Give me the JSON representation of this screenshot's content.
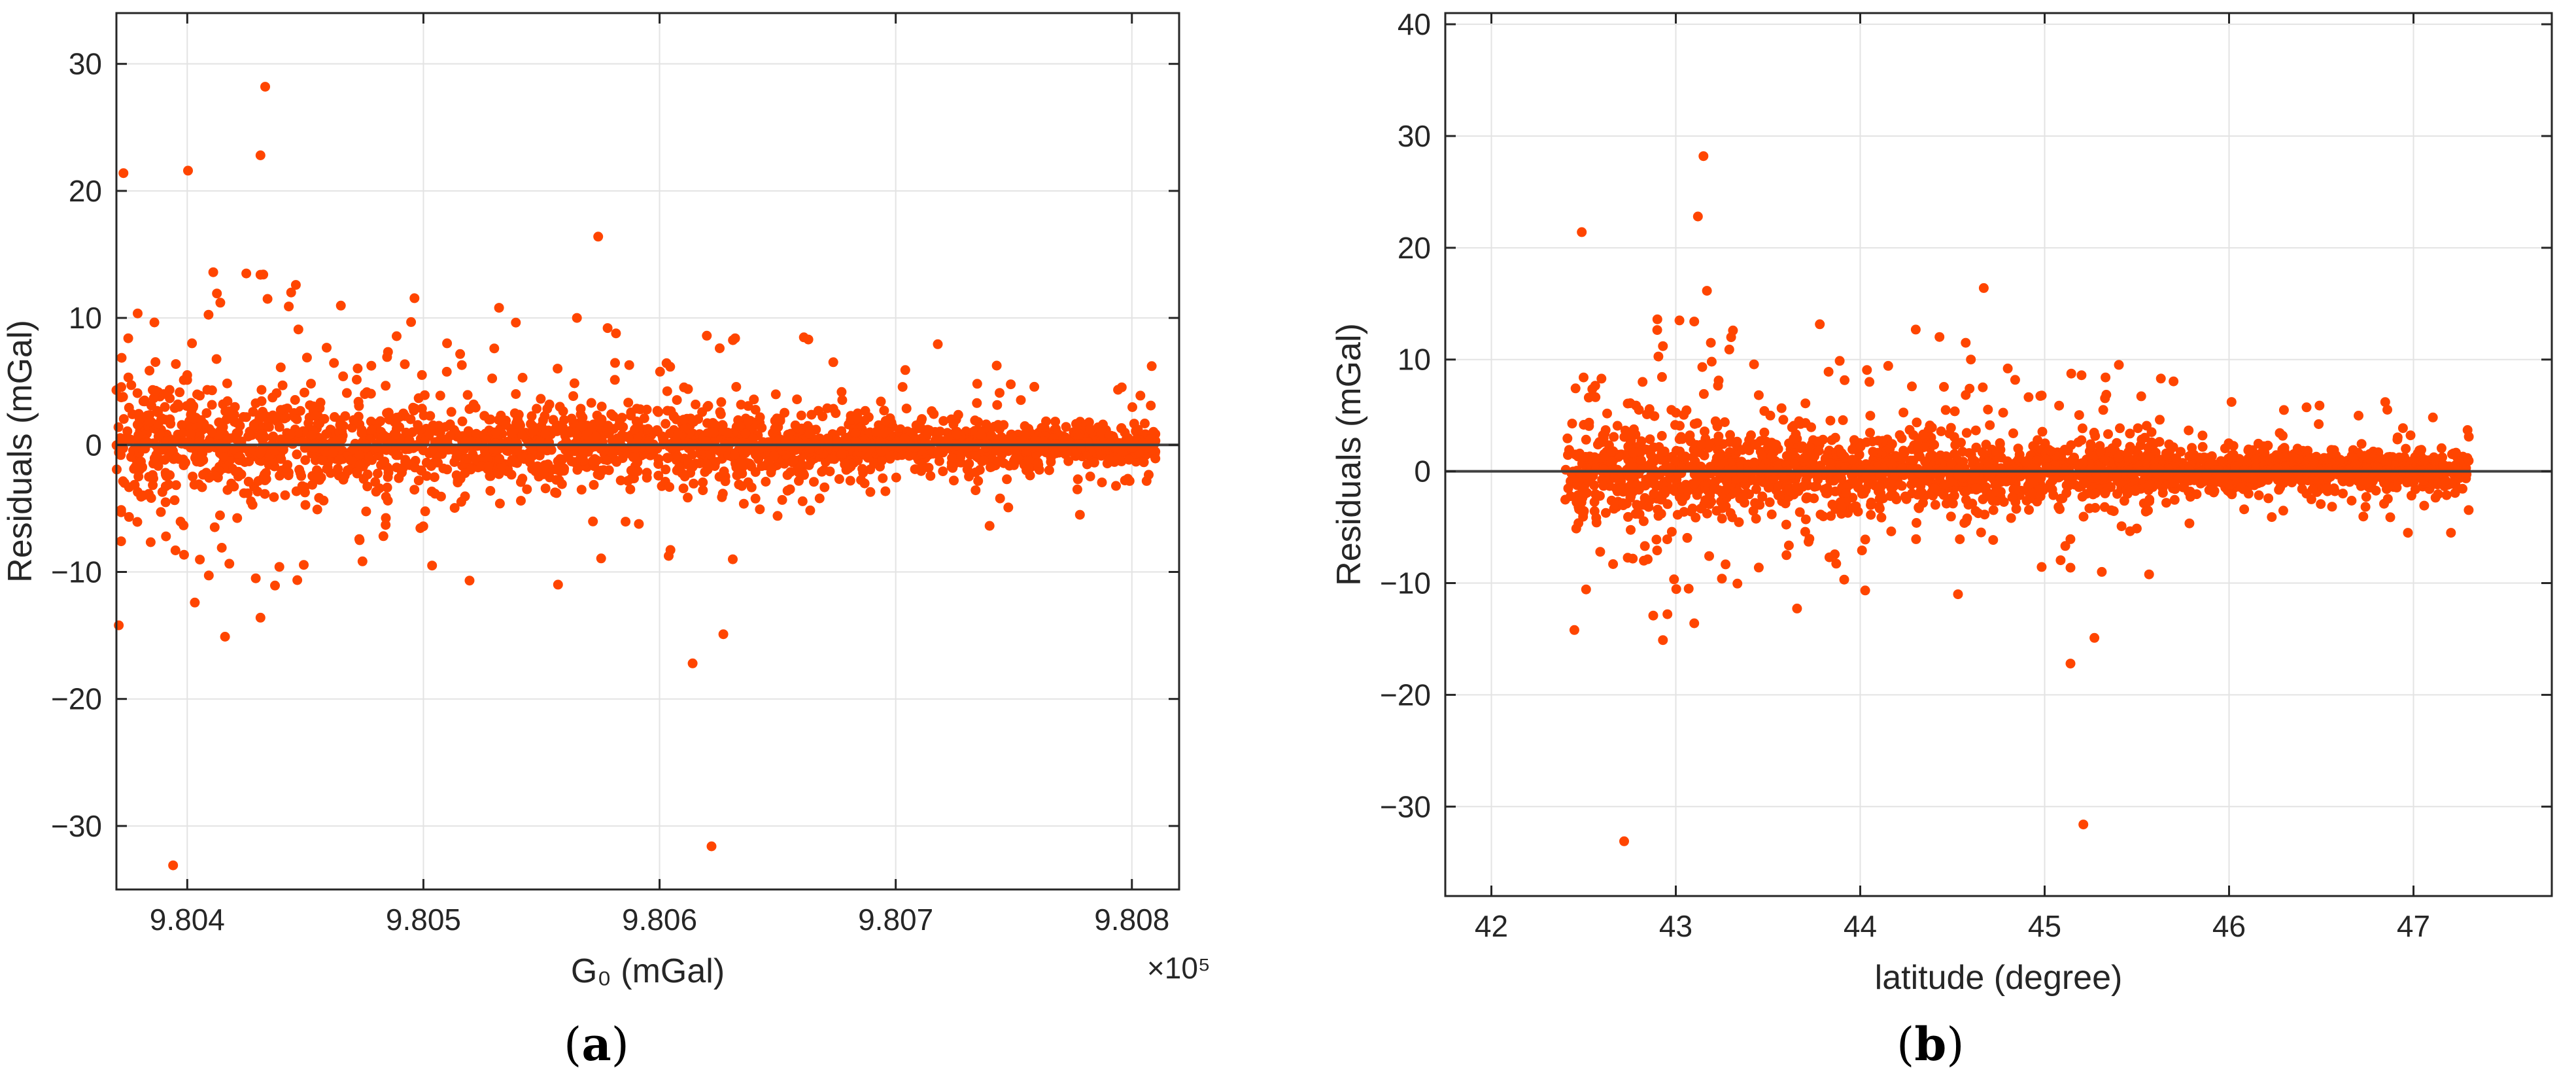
{
  "figure": {
    "captions": [
      "(a)",
      "(b)"
    ],
    "caption_letters": [
      "a",
      "b"
    ]
  },
  "colors": {
    "points": "#FF4500",
    "zero_line": "#404040",
    "grid": "#e3e3e3",
    "axes": "#262626"
  },
  "chart_data": [
    {
      "type": "scatter",
      "title": "",
      "xlabel": "G₀ (mGal)",
      "ylabel": "Residuals (mGal)",
      "x_multiplier": "×10⁵",
      "xlim": [
        9.8037,
        9.8082
      ],
      "ylim": [
        -35,
        34
      ],
      "xticks": [
        9.804,
        9.805,
        9.806,
        9.807,
        9.808
      ],
      "xtick_labels": [
        "9.804",
        "9.805",
        "9.806",
        "9.807",
        "9.808"
      ],
      "yticks": [
        -30,
        -20,
        -10,
        0,
        10,
        20,
        30
      ],
      "ytick_labels": [
        "−30",
        "−20",
        "−10",
        "0",
        "10",
        "20",
        "30"
      ],
      "grid": true,
      "legend": "none",
      "reference_line_y": 0,
      "points": [
        [
          9.80373,
          21.4
        ],
        [
          9.80375,
          8.4
        ],
        [
          9.80371,
          -14.2
        ],
        [
          9.80394,
          -33.1
        ],
        [
          9.80433,
          28.2
        ],
        [
          9.80431,
          22.8
        ],
        [
          9.80411,
          13.6
        ],
        [
          9.80425,
          13.5
        ],
        [
          9.80431,
          13.4
        ],
        [
          9.80446,
          12.6
        ],
        [
          9.80444,
          12.0
        ],
        [
          9.80434,
          11.5
        ],
        [
          9.80414,
          11.2
        ],
        [
          9.80443,
          10.9
        ],
        [
          9.80416,
          -15.1
        ],
        [
          9.80431,
          -13.6
        ],
        [
          9.80429,
          -10.5
        ],
        [
          9.80439,
          -9.6
        ],
        [
          9.80391,
          -7.2
        ],
        [
          9.80395,
          -8.3
        ],
        [
          9.80574,
          16.4
        ],
        [
          9.80557,
          -11.0
        ],
        [
          9.80614,
          -17.2
        ],
        [
          9.80622,
          -31.6
        ],
        [
          9.80627,
          -14.9
        ],
        [
          9.80631,
          -9.0
        ],
        [
          9.80565,
          10.0
        ],
        [
          9.80578,
          9.2
        ],
        [
          9.8062,
          8.6
        ],
        [
          9.80632,
          8.4
        ],
        [
          9.8051,
          8.0
        ],
        [
          9.8053,
          7.6
        ],
        [
          9.80663,
          8.3
        ],
        [
          9.80778,
          -5.5
        ],
        [
          9.80808,
          3.1
        ],
        [
          9.80402,
          8.0
        ],
        [
          9.804,
          5.5
        ],
        [
          9.80473,
          -7.5
        ],
        [
          9.80484,
          -6.3
        ],
        [
          9.80466,
          5.4
        ]
      ],
      "noise": {
        "x_range": [
          9.8037,
          9.8081
        ],
        "sigma": 1.3,
        "sigma_scale_at_x": [
          [
            9.8037,
            2.2
          ],
          [
            9.8045,
            2.0
          ],
          [
            9.8058,
            1.6
          ],
          [
            9.807,
            1.0
          ],
          [
            9.8081,
            0.8
          ]
        ],
        "n_points": 2400,
        "n_sparse_near_zero": 120
      }
    },
    {
      "type": "scatter",
      "title": "",
      "xlabel": "latitude (degree)",
      "ylabel": "Residuals (mGal)",
      "xlim": [
        41.75,
        47.75
      ],
      "ylim": [
        -38,
        41
      ],
      "xticks": [
        42,
        43,
        44,
        45,
        46,
        47
      ],
      "xtick_labels": [
        "42",
        "43",
        "44",
        "45",
        "46",
        "47"
      ],
      "yticks": [
        -30,
        -20,
        -10,
        0,
        10,
        20,
        30,
        40
      ],
      "ytick_labels": [
        "−30",
        "−20",
        "−10",
        "0",
        "10",
        "20",
        "30",
        "40"
      ],
      "grid": true,
      "legend": "none",
      "reference_line_y": 0,
      "points": [
        [
          42.49,
          21.4
        ],
        [
          42.5,
          8.4
        ],
        [
          42.45,
          -14.2
        ],
        [
          42.72,
          -33.1
        ],
        [
          43.15,
          28.2
        ],
        [
          43.12,
          22.8
        ],
        [
          42.9,
          13.6
        ],
        [
          43.02,
          13.5
        ],
        [
          43.1,
          13.4
        ],
        [
          43.31,
          12.6
        ],
        [
          43.3,
          12.0
        ],
        [
          43.19,
          11.5
        ],
        [
          42.93,
          11.2
        ],
        [
          43.29,
          10.9
        ],
        [
          42.93,
          -15.1
        ],
        [
          43.1,
          -13.6
        ],
        [
          43.07,
          -10.5
        ],
        [
          43.25,
          -9.6
        ],
        [
          42.59,
          -7.2
        ],
        [
          42.66,
          -8.3
        ],
        [
          44.67,
          16.4
        ],
        [
          44.53,
          -11.0
        ],
        [
          45.14,
          -17.2
        ],
        [
          45.21,
          -31.6
        ],
        [
          45.27,
          -14.9
        ],
        [
          45.31,
          -9.0
        ],
        [
          44.6,
          10.0
        ],
        [
          44.8,
          9.2
        ],
        [
          45.2,
          8.6
        ],
        [
          45.33,
          8.4
        ],
        [
          44.05,
          8.0
        ],
        [
          44.28,
          7.6
        ],
        [
          45.63,
          8.3
        ],
        [
          46.97,
          -5.5
        ],
        [
          47.3,
          3.1
        ],
        [
          42.82,
          8.0
        ],
        [
          42.8,
          5.5
        ],
        [
          43.6,
          -7.5
        ],
        [
          43.72,
          -6.3
        ],
        [
          43.48,
          5.4
        ]
      ],
      "noise": {
        "x_range": [
          42.4,
          47.3
        ],
        "sigma": 1.3,
        "sigma_scale_at_x": [
          [
            42.4,
            2.2
          ],
          [
            43.3,
            2.0
          ],
          [
            44.7,
            1.6
          ],
          [
            46.0,
            1.0
          ],
          [
            47.3,
            0.8
          ]
        ],
        "n_points": 2400,
        "n_sparse_near_zero": 120
      }
    }
  ]
}
